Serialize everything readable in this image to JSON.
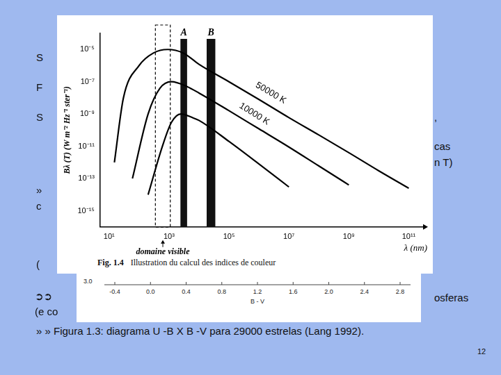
{
  "chart_data": {
    "type": "line",
    "caption": {
      "number": "Fig. 1.4",
      "text": "Illustration du calcul des indices de couleur"
    },
    "x_label": "λ (nm)",
    "y_label": "Bλ (T) (W m⁻² Hz⁻¹ ster⁻¹)",
    "log": true,
    "grid": false,
    "xlim": [
      5,
      300000000000
    ],
    "xticks": [
      {
        "value": 10,
        "label": "10¹"
      },
      {
        "value": 1000,
        "label": "10³"
      },
      {
        "value": 100000,
        "label": "10⁵"
      },
      {
        "value": 10000000,
        "label": "10⁷"
      },
      {
        "value": 1000000000,
        "label": "10⁹"
      },
      {
        "value": 100000000000,
        "label": "10¹¹"
      }
    ],
    "ylim": [
      1e-16,
      0.0001
    ],
    "yticks": [
      {
        "value": 1e-05,
        "label": "10⁻⁵"
      },
      {
        "value": 1e-07,
        "label": "10⁻⁷"
      },
      {
        "value": 1e-09,
        "label": "10⁻⁹"
      },
      {
        "value": 1e-11,
        "label": "10⁻¹¹"
      },
      {
        "value": 1e-13,
        "label": "10⁻¹³"
      },
      {
        "value": 1e-15,
        "label": "10⁻¹⁵"
      }
    ],
    "color": "#000000",
    "series": [
      {
        "name": "50000 K",
        "label_at": [
          2500000,
          2e-08
        ],
        "x": [
          15,
          30,
          100,
          300,
          900,
          3000,
          10000,
          100000,
          1000000,
          10000000,
          100000000,
          1000000000,
          10000000000,
          100000000000
        ],
        "values": [
          1e-12,
          1e-08,
          1e-06,
          6e-06,
          1e-05,
          6e-06,
          1.2e-06,
          1e-07,
          8e-09,
          6e-10,
          5e-11,
          4e-12,
          3e-13,
          2.5e-14
        ]
      },
      {
        "name": "10000 K",
        "label_at": [
          700000,
          1e-09
        ],
        "x": [
          60,
          200,
          500,
          1200,
          4000,
          10000,
          100000,
          1000000,
          10000000,
          100000000,
          1000000000
        ],
        "values": [
          1e-13,
          1e-09,
          4e-08,
          1e-07,
          5e-08,
          2e-08,
          1.6e-09,
          1.2e-10,
          9e-12,
          6e-13,
          4e-14
        ]
      },
      {
        "x": [
          200,
          600,
          1200,
          2500,
          6000,
          10000,
          100000,
          1000000,
          10000000
        ],
        "values": [
          1e-14,
          1e-11,
          3e-10,
          1e-09,
          6e-10,
          4e-10,
          2e-11,
          8e-13,
          3e-14
        ]
      }
    ],
    "bands": [
      {
        "label": "A",
        "x": [
          2400,
          4000
        ]
      },
      {
        "label": "B",
        "x": [
          18000,
          35000
        ]
      }
    ],
    "visible_domain": {
      "label": "domaine visible",
      "x": [
        350,
        1100
      ]
    },
    "lower_chart": {
      "y_label_top": "3.0",
      "xticks": [
        -0.4,
        0.0,
        0.4,
        0.8,
        1.2,
        1.6,
        2.0,
        2.4,
        2.8
      ],
      "x_label": "B - V"
    },
    "fragments": [
      "S",
      "F",
      "S",
      "»",
      "c",
      "(",
      "➲➲",
      "(e co",
      ",",
      "cas",
      "n T)",
      "osferas"
    ],
    "footer": "» » Figura 1.3: diagrama U -B X B -V para 29000 estrelas (Lang 1992).",
    "page_number": "12"
  }
}
